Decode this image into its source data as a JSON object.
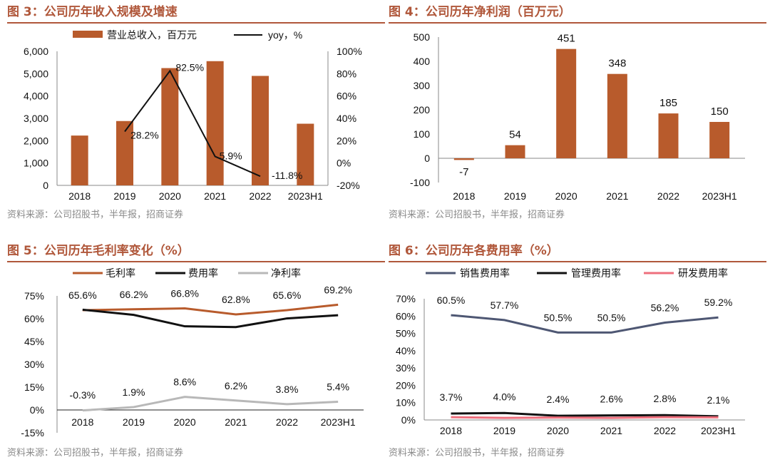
{
  "colors": {
    "accent": "#b0573a",
    "bar": "#b85b2c",
    "black": "#111111",
    "gray": "#b8b8b8",
    "navy": "#4e5773",
    "pink": "#ee6f7d"
  },
  "source_text": "资料来源：公司招股书，半年报，招商证券",
  "chart_data": [
    {
      "id": "fig3",
      "type": "bar",
      "title": "图 3：公司历年收入规模及增速",
      "categories": [
        "2018",
        "2019",
        "2020",
        "2021",
        "2022",
        "2023H1"
      ],
      "series": [
        {
          "name": "营业总收入，百万元",
          "kind": "bar",
          "axis": "left",
          "values": [
            2230,
            2880,
            5250,
            5560,
            4900,
            2760
          ]
        },
        {
          "name": "yoy，%",
          "kind": "line",
          "axis": "right",
          "values": [
            null,
            28.2,
            82.5,
            5.9,
            -11.8,
            null
          ],
          "labels": [
            "",
            "28.2%",
            "82.5%",
            "5.9%",
            "-11.8%",
            ""
          ]
        }
      ],
      "y_left": {
        "min": 0,
        "max": 6000,
        "ticks": [
          "0",
          "1,000",
          "2,000",
          "3,000",
          "4,000",
          "5,000",
          "6,000"
        ]
      },
      "y_right": {
        "min": -20,
        "max": 100,
        "ticks": [
          "-20%",
          "0%",
          "20%",
          "40%",
          "60%",
          "80%",
          "100%"
        ]
      },
      "legend": [
        "营业总收入，百万元",
        "yoy，%"
      ]
    },
    {
      "id": "fig4",
      "type": "bar",
      "title": "图 4：公司历年净利润（百万元）",
      "categories": [
        "2018",
        "2019",
        "2020",
        "2021",
        "2022",
        "2023H1"
      ],
      "series": [
        {
          "name": "净利润",
          "values": [
            -7,
            54,
            451,
            348,
            185,
            150
          ],
          "labels": [
            "-7",
            "54",
            "451",
            "348",
            "185",
            "150"
          ]
        }
      ],
      "y": {
        "min": -100,
        "max": 500,
        "ticks": [
          "-100",
          "0",
          "100",
          "200",
          "300",
          "400",
          "500"
        ]
      }
    },
    {
      "id": "fig5",
      "type": "line",
      "title": "图 5：公司历年毛利率变化（%）",
      "categories": [
        "2018",
        "2019",
        "2020",
        "2021",
        "2022",
        "2023H1"
      ],
      "series": [
        {
          "name": "毛利率",
          "values": [
            65.6,
            66.2,
            66.8,
            62.8,
            65.6,
            69.2
          ],
          "labels": [
            "65.6%",
            "66.2%",
            "66.8%",
            "62.8%",
            "65.6%",
            "69.2%"
          ]
        },
        {
          "name": "费用率",
          "values": [
            65.9,
            62.5,
            55.0,
            54.5,
            60.2,
            62.3
          ]
        },
        {
          "name": "净利率",
          "values": [
            -0.3,
            1.9,
            8.6,
            6.2,
            3.8,
            5.4
          ],
          "labels": [
            "-0.3%",
            "1.9%",
            "8.6%",
            "6.2%",
            "3.8%",
            "5.4%"
          ]
        }
      ],
      "y": {
        "min": -15,
        "max": 75,
        "ticks": [
          "-15%",
          "0%",
          "15%",
          "30%",
          "45%",
          "60%",
          "75%"
        ]
      },
      "legend": [
        "毛利率",
        "费用率",
        "净利率"
      ]
    },
    {
      "id": "fig6",
      "type": "line",
      "title": "图 6：公司历年各费用率（%）",
      "categories": [
        "2018",
        "2019",
        "2020",
        "2021",
        "2022",
        "2023H1"
      ],
      "series": [
        {
          "name": "销售费用率",
          "values": [
            60.5,
            57.7,
            50.5,
            50.5,
            56.2,
            59.2
          ],
          "labels": [
            "60.5%",
            "57.7%",
            "50.5%",
            "50.5%",
            "56.2%",
            "59.2%"
          ]
        },
        {
          "name": "管理费用率",
          "values": [
            3.7,
            4.0,
            2.4,
            2.6,
            2.8,
            2.1
          ],
          "labels": [
            "3.7%",
            "4.0%",
            "2.4%",
            "2.6%",
            "2.8%",
            "2.1%"
          ]
        },
        {
          "name": "研发费用率",
          "values": [
            1.6,
            1.2,
            1.4,
            1.2,
            1.6,
            1.5
          ]
        }
      ],
      "y": {
        "min": 0,
        "max": 70,
        "ticks": [
          "0%",
          "10%",
          "20%",
          "30%",
          "40%",
          "50%",
          "60%",
          "70%"
        ]
      },
      "legend": [
        "销售费用率",
        "管理费用率",
        "研发费用率"
      ]
    }
  ]
}
